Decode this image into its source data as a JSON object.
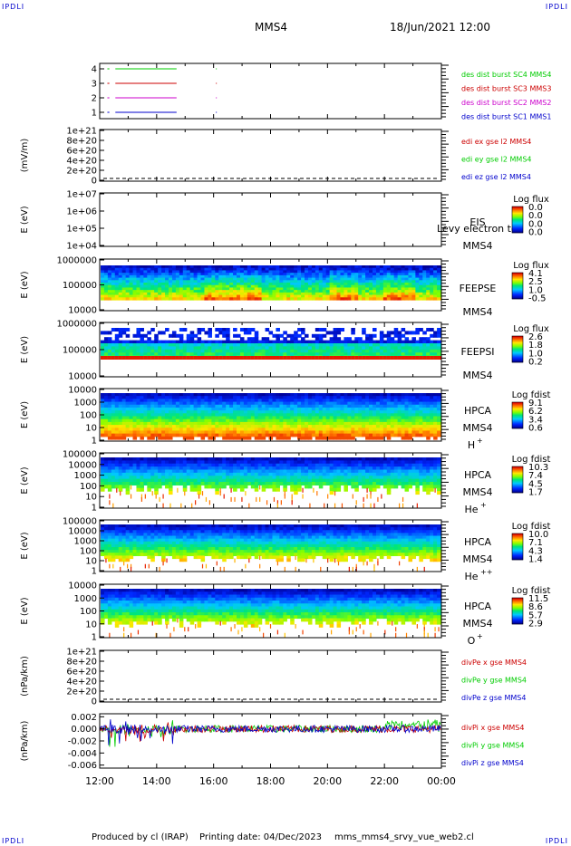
{
  "corners": {
    "tl": "IPDLI",
    "tr": "IPDLI",
    "bl": "IPDLI",
    "br": "IPDLI"
  },
  "header": {
    "spacecraft": "MMS4",
    "datetime": "18/Jun/2021 12:00"
  },
  "footer": {
    "produced": "Produced by cl (IRAP)",
    "printing": "Printing date: 04/Dec/2023",
    "file": "mms_mms4_srvy_vue_web2.cl"
  },
  "chart_data": [
    {
      "type": "line",
      "id": "p1-burst",
      "ylabel": "",
      "yticks": [
        "4",
        "3",
        "2",
        "1"
      ],
      "series": [
        {
          "name": "des dist burst SC1 MMS1",
          "color": "#0000cc",
          "level": 1,
          "segments": [
            [
              12.07,
              12.15
            ],
            [
              12.27,
              12.34
            ],
            [
              12.55,
              14.7
            ]
          ],
          "dots": [
            16.08
          ]
        },
        {
          "name": "des dist burst SC2 MMS2",
          "color": "#cc00cc",
          "level": 2,
          "segments": [
            [
              12.07,
              12.15
            ],
            [
              12.27,
              12.34
            ],
            [
              12.55,
              14.7
            ]
          ],
          "dots": [
            16.08
          ]
        },
        {
          "name": "des dist burst SC3 MMS3",
          "color": "#cc0000",
          "level": 3,
          "segments": [
            [
              12.07,
              12.15
            ],
            [
              12.27,
              12.34
            ],
            [
              12.55,
              14.7
            ]
          ],
          "dots": [
            16.08
          ]
        },
        {
          "name": "des dist burst SC4 MMS4",
          "color": "#00cc00",
          "level": 4,
          "segments": [
            [
              12.07,
              12.15
            ],
            [
              12.27,
              12.34
            ],
            [
              12.55,
              14.7
            ]
          ],
          "dots": [
            16.08
          ]
        }
      ]
    },
    {
      "type": "line",
      "id": "p2-edi",
      "ylabel": "(mV/m)",
      "yticks": [
        "1e+21",
        "8e+20",
        "6e+20",
        "4e+20",
        "2e+20",
        "0"
      ],
      "series": [
        {
          "name": "edi ex gse l2 MMS4",
          "color": "#cc0000"
        },
        {
          "name": "edi ey gse l2 MMS4",
          "color": "#00cc00"
        },
        {
          "name": "edi ez gse l2 MMS4",
          "color": "#0000cc"
        }
      ]
    },
    {
      "type": "heatmap",
      "id": "p3-eis",
      "ylabel": "E (eV)",
      "yticks": [
        "1e+07",
        "1e+06",
        "1e+05",
        "1e+04"
      ],
      "instrument": [
        "EIS",
        "MMS4"
      ],
      "overlay_text": "Levy electron to",
      "colorbar": {
        "title": "Log flux",
        "ticks": [
          "0.0",
          "0.0",
          "0.0",
          "0.0"
        ]
      }
    },
    {
      "type": "heatmap",
      "id": "p4-feeps-e",
      "ylabel": "E (eV)",
      "yticks": [
        "1000000",
        "100000",
        "10000"
      ],
      "instrument": [
        "FEEPSE",
        "MMS4"
      ],
      "colorbar": {
        "title": "Log flux",
        "ticks": [
          "4.1",
          "2.5",
          "1.0",
          "-0.5"
        ]
      }
    },
    {
      "type": "heatmap",
      "id": "p5-feeps-i",
      "ylabel": "E (eV)",
      "yticks": [
        "1000000",
        "100000",
        "10000"
      ],
      "instrument": [
        "FEEPSI",
        "MMS4"
      ],
      "colorbar": {
        "title": "Log flux",
        "ticks": [
          "2.6",
          "1.8",
          "1.0",
          "0.2"
        ]
      }
    },
    {
      "type": "heatmap",
      "id": "p6-hpca-h",
      "ylabel": "E (eV)",
      "yticks": [
        "10000",
        "1000",
        "100",
        "10",
        "1"
      ],
      "instrument": [
        "HPCA",
        "MMS4"
      ],
      "species": "H",
      "charge": "+",
      "colorbar": {
        "title": "Log fdist",
        "ticks": [
          "9.1",
          "6.2",
          "3.4",
          "0.6"
        ]
      }
    },
    {
      "type": "heatmap",
      "id": "p7-hpca-he",
      "ylabel": "E (eV)",
      "yticks": [
        "100000",
        "10000",
        "1000",
        "100",
        "10",
        "1"
      ],
      "instrument": [
        "HPCA",
        "MMS4"
      ],
      "species": "He",
      "charge": "+",
      "colorbar": {
        "title": "Log fdist",
        "ticks": [
          "10.3",
          "7.4",
          "4.5",
          "1.7"
        ]
      }
    },
    {
      "type": "heatmap",
      "id": "p8-hpca-he2",
      "ylabel": "E (eV)",
      "yticks": [
        "100000",
        "10000",
        "1000",
        "100",
        "10",
        "1"
      ],
      "instrument": [
        "HPCA",
        "MMS4"
      ],
      "species": "He",
      "charge": "++",
      "colorbar": {
        "title": "Log fdist",
        "ticks": [
          "10.0",
          "7.1",
          "4.3",
          "1.4"
        ]
      }
    },
    {
      "type": "heatmap",
      "id": "p9-hpca-o",
      "ylabel": "E (eV)",
      "yticks": [
        "10000",
        "1000",
        "100",
        "10",
        "1"
      ],
      "instrument": [
        "HPCA",
        "MMS4"
      ],
      "species": "O",
      "charge": "+",
      "colorbar": {
        "title": "Log fdist",
        "ticks": [
          "11.5",
          "8.6",
          "5.7",
          "2.9"
        ]
      }
    },
    {
      "type": "line",
      "id": "p10-divpe",
      "ylabel": "(nPa/km)",
      "yticks": [
        "1e+21",
        "8e+20",
        "6e+20",
        "4e+20",
        "2e+20",
        "0"
      ],
      "series": [
        {
          "name": "divPe x gse MMS4",
          "color": "#cc0000"
        },
        {
          "name": "divPe y gse MMS4",
          "color": "#00cc00"
        },
        {
          "name": "divPe z gse MMS4",
          "color": "#0000cc"
        }
      ]
    },
    {
      "type": "line",
      "id": "p11-divpi",
      "ylabel": "(nPa/km)",
      "yticks": [
        "0.002",
        "0.000",
        "-0.002",
        "-0.004",
        "-0.006"
      ],
      "ylim": [
        -0.0065,
        0.0025
      ],
      "series": [
        {
          "name": "divPi x gse MMS4",
          "color": "#cc0000"
        },
        {
          "name": "divPi y gse MMS4",
          "color": "#00cc00"
        },
        {
          "name": "divPi z gse MMS4",
          "color": "#0000cc"
        }
      ]
    }
  ],
  "xaxis": {
    "ticks": [
      "12:00",
      "14:00",
      "16:00",
      "18:00",
      "20:00",
      "22:00",
      "00:00"
    ],
    "range": [
      12,
      24
    ]
  }
}
